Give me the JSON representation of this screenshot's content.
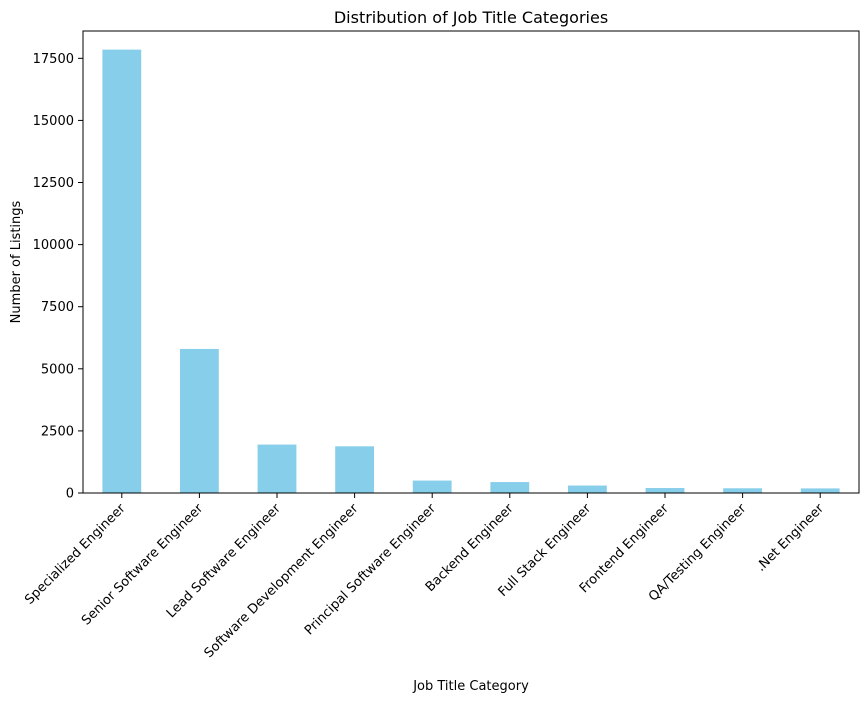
{
  "chart_data": {
    "type": "bar",
    "title": "Distribution of Job Title Categories",
    "xlabel": "Job Title Category",
    "ylabel": "Number of Listings",
    "categories": [
      "Specialized Engineer",
      "Senior Software Engineer",
      "Lead Software Engineer",
      "Software Development Engineer",
      "Principal Software Engineer",
      "Backend Engineer",
      "Full Stack Engineer",
      "Frontend Engineer",
      "QA/Testing Engineer",
      ".Net Engineer"
    ],
    "values": [
      17850,
      5800,
      1950,
      1880,
      500,
      440,
      300,
      200,
      190,
      185
    ],
    "ylim": [
      0,
      18600
    ],
    "yticks": [
      0,
      2500,
      5000,
      7500,
      10000,
      12500,
      15000,
      17500
    ],
    "bar_color": "#87ceeb",
    "grid": false,
    "legend": false
  }
}
